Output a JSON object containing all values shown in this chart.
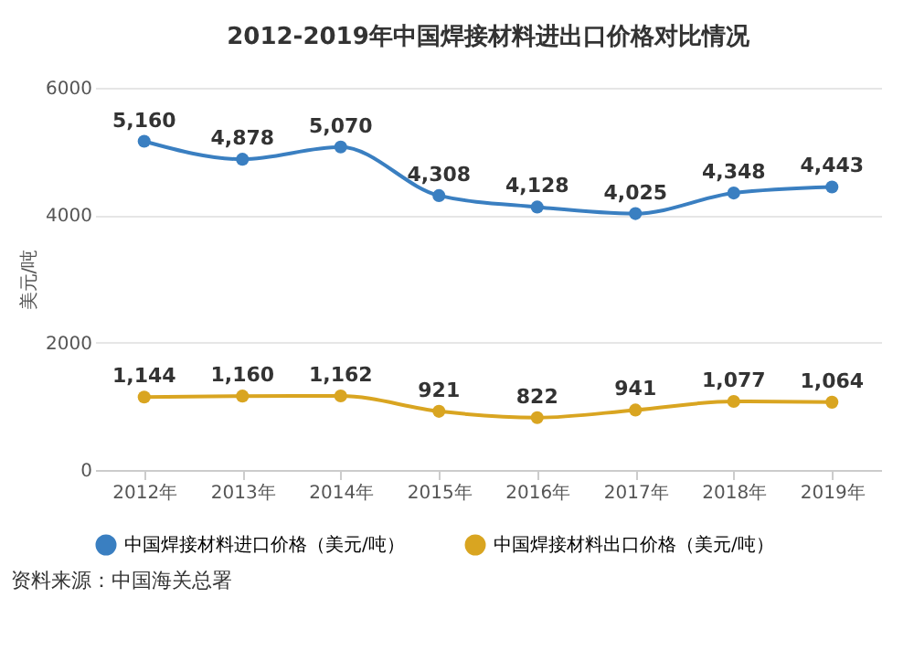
{
  "chart_data": {
    "type": "line",
    "title": "2012-2019年中国焊接材料进出口价格对比情况",
    "ylabel": "美元/吨",
    "categories": [
      "2012年",
      "2013年",
      "2014年",
      "2015年",
      "2016年",
      "2017年",
      "2018年",
      "2019年"
    ],
    "series": [
      {
        "name": "中国焊接材料进口价格（美元/吨）",
        "color": "#3a7fc1",
        "values": [
          5160,
          4878,
          5070,
          4308,
          4128,
          4025,
          4348,
          4443
        ],
        "value_labels": [
          "5,160",
          "4,878",
          "5,070",
          "4,308",
          "4,128",
          "4,025",
          "4,348",
          "4,443"
        ]
      },
      {
        "name": "中国焊接材料出口价格（美元/吨）",
        "color": "#d9a521",
        "values": [
          1144,
          1160,
          1162,
          921,
          822,
          941,
          1077,
          1064
        ],
        "value_labels": [
          "1,144",
          "1,160",
          "1,162",
          "921",
          "822",
          "941",
          "1,077",
          "1,064"
        ]
      }
    ],
    "ylim": [
      0,
      6000
    ],
    "yticks": [
      0,
      2000,
      4000,
      6000
    ],
    "grid": "y",
    "legend": "bottom",
    "marker": "circle",
    "line_style": "solid",
    "annotations": [
      "资料来源：中国海关总署"
    ]
  }
}
